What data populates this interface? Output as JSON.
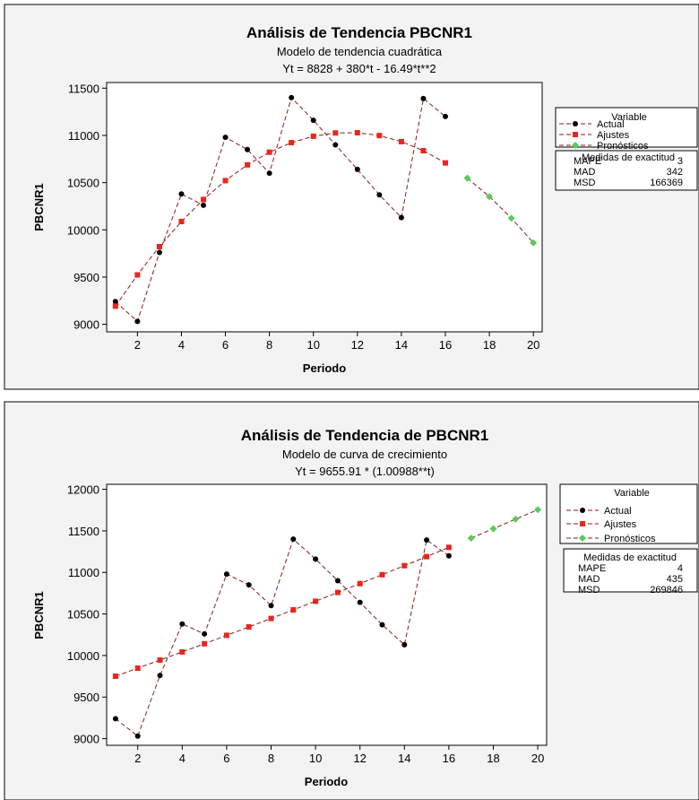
{
  "chart_data": [
    {
      "type": "line",
      "title": "Análisis de Tendencia PBCNR1",
      "subtitle": "Modelo de tendencia cuadrática",
      "equation": "Yt = 8828 + 380*t - 16.49*t**2",
      "xlabel": "Periodo",
      "ylabel": "PBCNR1",
      "xlim": [
        0.6,
        20.4
      ],
      "ylim": [
        8920,
        11560
      ],
      "xticks": [
        2,
        4,
        6,
        8,
        10,
        12,
        14,
        16,
        18,
        20
      ],
      "yticks": [
        9000,
        9500,
        10000,
        10500,
        11000,
        11500
      ],
      "grid": false,
      "legend_title": "Variable",
      "legend_placement": "right",
      "series": [
        {
          "name": "Actual",
          "color": "#000000",
          "marker": "circle",
          "x": [
            1,
            2,
            3,
            4,
            5,
            6,
            7,
            8,
            9,
            10,
            11,
            12,
            13,
            14,
            15,
            16
          ],
          "values": [
            9240,
            9030,
            9760,
            10380,
            10260,
            10980,
            10850,
            10600,
            11400,
            11160,
            10900,
            10640,
            10370,
            10130,
            11390,
            11200
          ]
        },
        {
          "name": "Ajustes",
          "color": "#e8261c",
          "marker": "square",
          "x": [
            1,
            2,
            3,
            4,
            5,
            6,
            7,
            8,
            9,
            10,
            11,
            12,
            13,
            14,
            15,
            16
          ],
          "values": [
            9192,
            9523,
            9822,
            10088,
            10321,
            10521,
            10688,
            10822,
            10923,
            10991,
            11026,
            11028,
            10998,
            10934,
            10838,
            10709
          ]
        },
        {
          "name": "Pronósticos",
          "color": "#5cc95c",
          "marker": "diamond",
          "x": [
            17,
            18,
            19,
            20
          ],
          "values": [
            10547,
            10352,
            10124,
            9863
          ]
        }
      ],
      "accuracy": {
        "title": "Medidas de exactitud",
        "rows": [
          {
            "label": "MAPE",
            "value": "3"
          },
          {
            "label": "MAD",
            "value": "342"
          },
          {
            "label": "MSD",
            "value": "166369"
          }
        ]
      }
    },
    {
      "type": "line",
      "title": "Análisis de Tendencia de PBCNR1",
      "subtitle": "Modelo de curva de crecimiento",
      "equation": "Yt = 9655.91 * (1.00988**t)",
      "xlabel": "Periodo",
      "ylabel": "PBCNR1",
      "xlim": [
        0.6,
        20.4
      ],
      "ylim": [
        8920,
        12060
      ],
      "xticks": [
        2,
        4,
        6,
        8,
        10,
        12,
        14,
        16,
        18,
        20
      ],
      "yticks": [
        9000,
        9500,
        10000,
        10500,
        11000,
        11500,
        12000
      ],
      "grid": false,
      "legend_title": "Variable",
      "legend_placement": "right",
      "series": [
        {
          "name": "Actual",
          "color": "#000000",
          "marker": "circle",
          "x": [
            1,
            2,
            3,
            4,
            5,
            6,
            7,
            8,
            9,
            10,
            11,
            12,
            13,
            14,
            15,
            16
          ],
          "values": [
            9240,
            9030,
            9760,
            10380,
            10260,
            10980,
            10850,
            10600,
            11400,
            11160,
            10900,
            10640,
            10370,
            10130,
            11390,
            11200
          ]
        },
        {
          "name": "Ajustes",
          "color": "#e8261c",
          "marker": "square",
          "x": [
            1,
            2,
            3,
            4,
            5,
            6,
            7,
            8,
            9,
            10,
            11,
            12,
            13,
            14,
            15,
            16
          ],
          "values": [
            9751,
            9848,
            9945,
            10043,
            10142,
            10243,
            10344,
            10446,
            10549,
            10653,
            10759,
            10865,
            10972,
            11081,
            11190,
            11301
          ]
        },
        {
          "name": "Pronósticos",
          "color": "#5cc95c",
          "marker": "diamond",
          "x": [
            17,
            18,
            19,
            20
          ],
          "values": [
            11413,
            11526,
            11640,
            11755
          ]
        }
      ],
      "accuracy": {
        "title": "Medidas de exactitud",
        "rows": [
          {
            "label": "MAPE",
            "value": "4"
          },
          {
            "label": "MAD",
            "value": "435"
          },
          {
            "label": "MSD",
            "value": "269846"
          }
        ]
      }
    }
  ]
}
